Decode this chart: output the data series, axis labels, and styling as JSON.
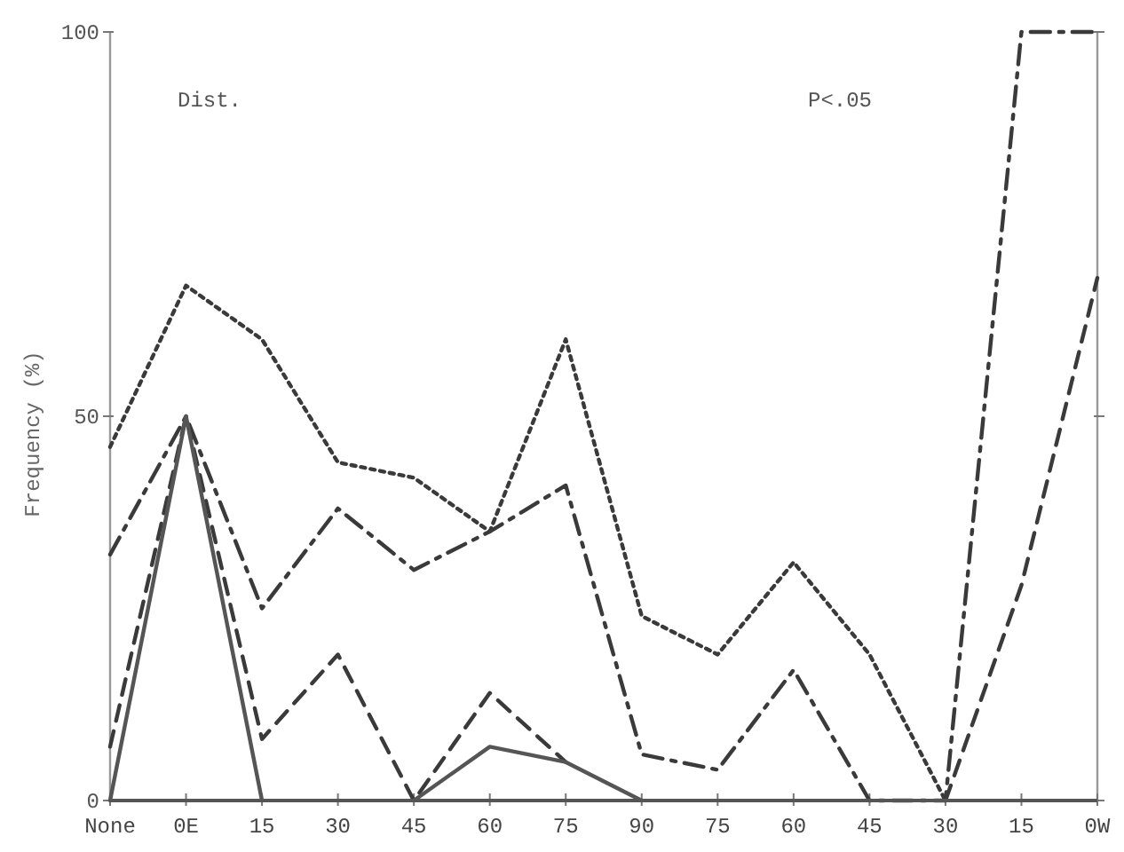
{
  "chart_data": {
    "type": "line",
    "ylabel": "Frequency (%)",
    "categories": [
      "None",
      "0E",
      "15",
      "30",
      "45",
      "60",
      "75",
      "90",
      "75",
      "60",
      "45",
      "30",
      "15",
      "0W"
    ],
    "series": [
      {
        "color": "#3a3a3a",
        "line_style": "dotted",
        "values": [
          46,
          67,
          60,
          44,
          42,
          35,
          60,
          24,
          19,
          31,
          19,
          0,
          null,
          null
        ]
      },
      {
        "color": "#3a3a3a",
        "line_style": "dashdot",
        "values": [
          32,
          50,
          25,
          38,
          30,
          35,
          41,
          6,
          4,
          17,
          0,
          0,
          100,
          100
        ]
      },
      {
        "color": "#3a3a3a",
        "line_style": "dashed",
        "values": [
          7,
          50,
          8,
          19,
          0,
          14,
          5,
          null,
          null,
          null,
          null,
          0,
          28,
          68
        ]
      },
      {
        "color": "#555555",
        "line_style": "solid",
        "values": [
          0,
          50,
          0,
          null,
          0,
          7,
          5,
          0,
          null,
          null,
          null,
          null,
          null,
          null
        ]
      }
    ],
    "ylim": [
      0,
      100
    ],
    "yticks": [
      0,
      50,
      100
    ],
    "grid": false,
    "marker": "none",
    "annotations": [
      "Dist.",
      "P<.05"
    ]
  }
}
